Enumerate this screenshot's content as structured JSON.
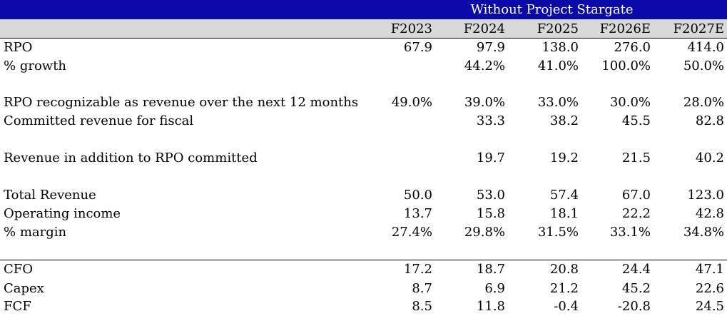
{
  "banner": {
    "title": "Without Project Stargate",
    "color": "#0a0aa8"
  },
  "header": {
    "columns": [
      "F2023",
      "F2024",
      "F2025",
      "F2026E",
      "F2027E"
    ]
  },
  "rows": [
    {
      "label": "RPO",
      "values": [
        "67.9",
        "97.9",
        "138.0",
        "276.0",
        "414.0"
      ]
    },
    {
      "label": "% growth",
      "values": [
        "",
        "44.2%",
        "41.0%",
        "100.0%",
        "50.0%"
      ]
    },
    {
      "label": "RPO recognizable as  revenue over the next 12 months",
      "values": [
        "49.0%",
        "39.0%",
        "33.0%",
        "30.0%",
        "28.0%"
      ]
    },
    {
      "label": "Committed revenue for fiscal",
      "values": [
        "",
        "33.3",
        "38.2",
        "45.5",
        "82.8"
      ]
    },
    {
      "label": "Revenue in addition to RPO committed",
      "values": [
        "",
        "19.7",
        "19.2",
        "21.5",
        "40.2"
      ]
    },
    {
      "label": "Total Revenue",
      "values": [
        "50.0",
        "53.0",
        "57.4",
        "67.0",
        "123.0"
      ]
    },
    {
      "label": "Operating income",
      "values": [
        "13.7",
        "15.8",
        "18.1",
        "22.2",
        "42.8"
      ]
    },
    {
      "label": "% margin",
      "values": [
        "27.4%",
        "29.8%",
        "31.5%",
        "33.1%",
        "34.8%"
      ]
    },
    {
      "label": "CFO",
      "values": [
        "17.2",
        "18.7",
        "20.8",
        "24.4",
        "47.1"
      ]
    },
    {
      "label": "Capex",
      "values": [
        "8.7",
        "6.9",
        "21.2",
        "45.2",
        "22.6"
      ]
    },
    {
      "label": "FCF",
      "values": [
        "8.5",
        "11.8",
        "-0.4",
        "-20.8",
        "24.5"
      ]
    }
  ]
}
